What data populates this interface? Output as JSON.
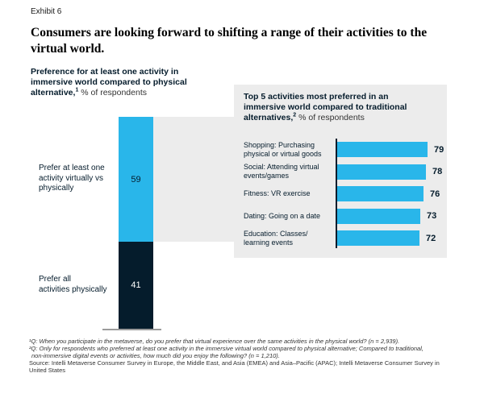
{
  "exhibit_label": "Exhibit 6",
  "title": "Consumers are looking forward to shifting a range of their activities to the\nvirtual world.",
  "colors": {
    "accent_blue": "#29B6EA",
    "dark_navy": "#051C2C",
    "panel_gray": "#ECECEC",
    "baseline_gray": "#9b9b9b"
  },
  "left_chart": {
    "heading_bold": "Preference for at least one activity in\nimmersive world compared to physical\nalternative,",
    "heading_sup": "1",
    "heading_regular": " % of respondents",
    "segments": [
      {
        "label": "Prefer at least one\nactivity virtually vs\nphysically",
        "value": 59,
        "color": "#29B6EA",
        "text_color": "#051C2C"
      },
      {
        "label": "Prefer all\nactivities physically",
        "value": 41,
        "color": "#051C2C",
        "text_color": "#FFFFFF"
      }
    ]
  },
  "right_panel": {
    "heading_bold": "Top 5 activities most preferred in an\nimmersive world compared to traditional\nalternatives,",
    "heading_sup": "2",
    "heading_regular": " % of respondents",
    "items": [
      {
        "label": "Shopping: Purchasing\nphysical or virtual goods",
        "value": 79
      },
      {
        "label": "Social: Attending virtual\nevents/games",
        "value": 78
      },
      {
        "label": "Fitness: VR exercise",
        "value": 76
      },
      {
        "label": "Dating: Going on a date",
        "value": 73
      },
      {
        "label": "Education: Classes/\nlearning events",
        "value": 72
      }
    ]
  },
  "footnotes": [
    {
      "text": "¹Q: When you participate in the metaverse, do you prefer that virtual experience over the same activities in the physical world? (n = 2,939).",
      "italic": true
    },
    {
      "text": "²Q: Only for respondents who preferred at least one activity in the immersive virtual world compared to physical alternative; Compared to traditional,\nnon-immersive digital events or activities, how much did you enjoy the following? (n = 1,210).",
      "italic": true
    },
    {
      "text": "Source: Intelli Metaverse Consumer Survey in Europe, the Middle East, and Asia (EMEA) and Asia–Pacific (APAC); Intelli Metaverse Consumer Survey in\nUnited States",
      "italic": false
    }
  ],
  "chart_data": [
    {
      "type": "bar",
      "subtype": "stacked-vertical",
      "title": "Preference for at least one activity in immersive world compared to physical alternative, % of respondents",
      "categories": [
        "Prefer at least one activity virtually vs physically",
        "Prefer all activities physically"
      ],
      "values": [
        59,
        41
      ],
      "colors": [
        "#29B6EA",
        "#051C2C"
      ],
      "ylim": [
        0,
        100
      ],
      "grid": false,
      "legend": false
    },
    {
      "type": "bar",
      "subtype": "horizontal",
      "title": "Top 5 activities most preferred in an immersive world compared to traditional alternatives, % of respondents",
      "categories": [
        "Shopping: Purchasing physical or virtual goods",
        "Social: Attending virtual events/games",
        "Fitness: VR exercise",
        "Dating: Going on a date",
        "Education: Classes/learning events"
      ],
      "values": [
        79,
        78,
        76,
        73,
        72
      ],
      "color": "#29B6EA",
      "xlim": [
        0,
        100
      ],
      "grid": false,
      "legend": false,
      "data_labels": true
    }
  ]
}
